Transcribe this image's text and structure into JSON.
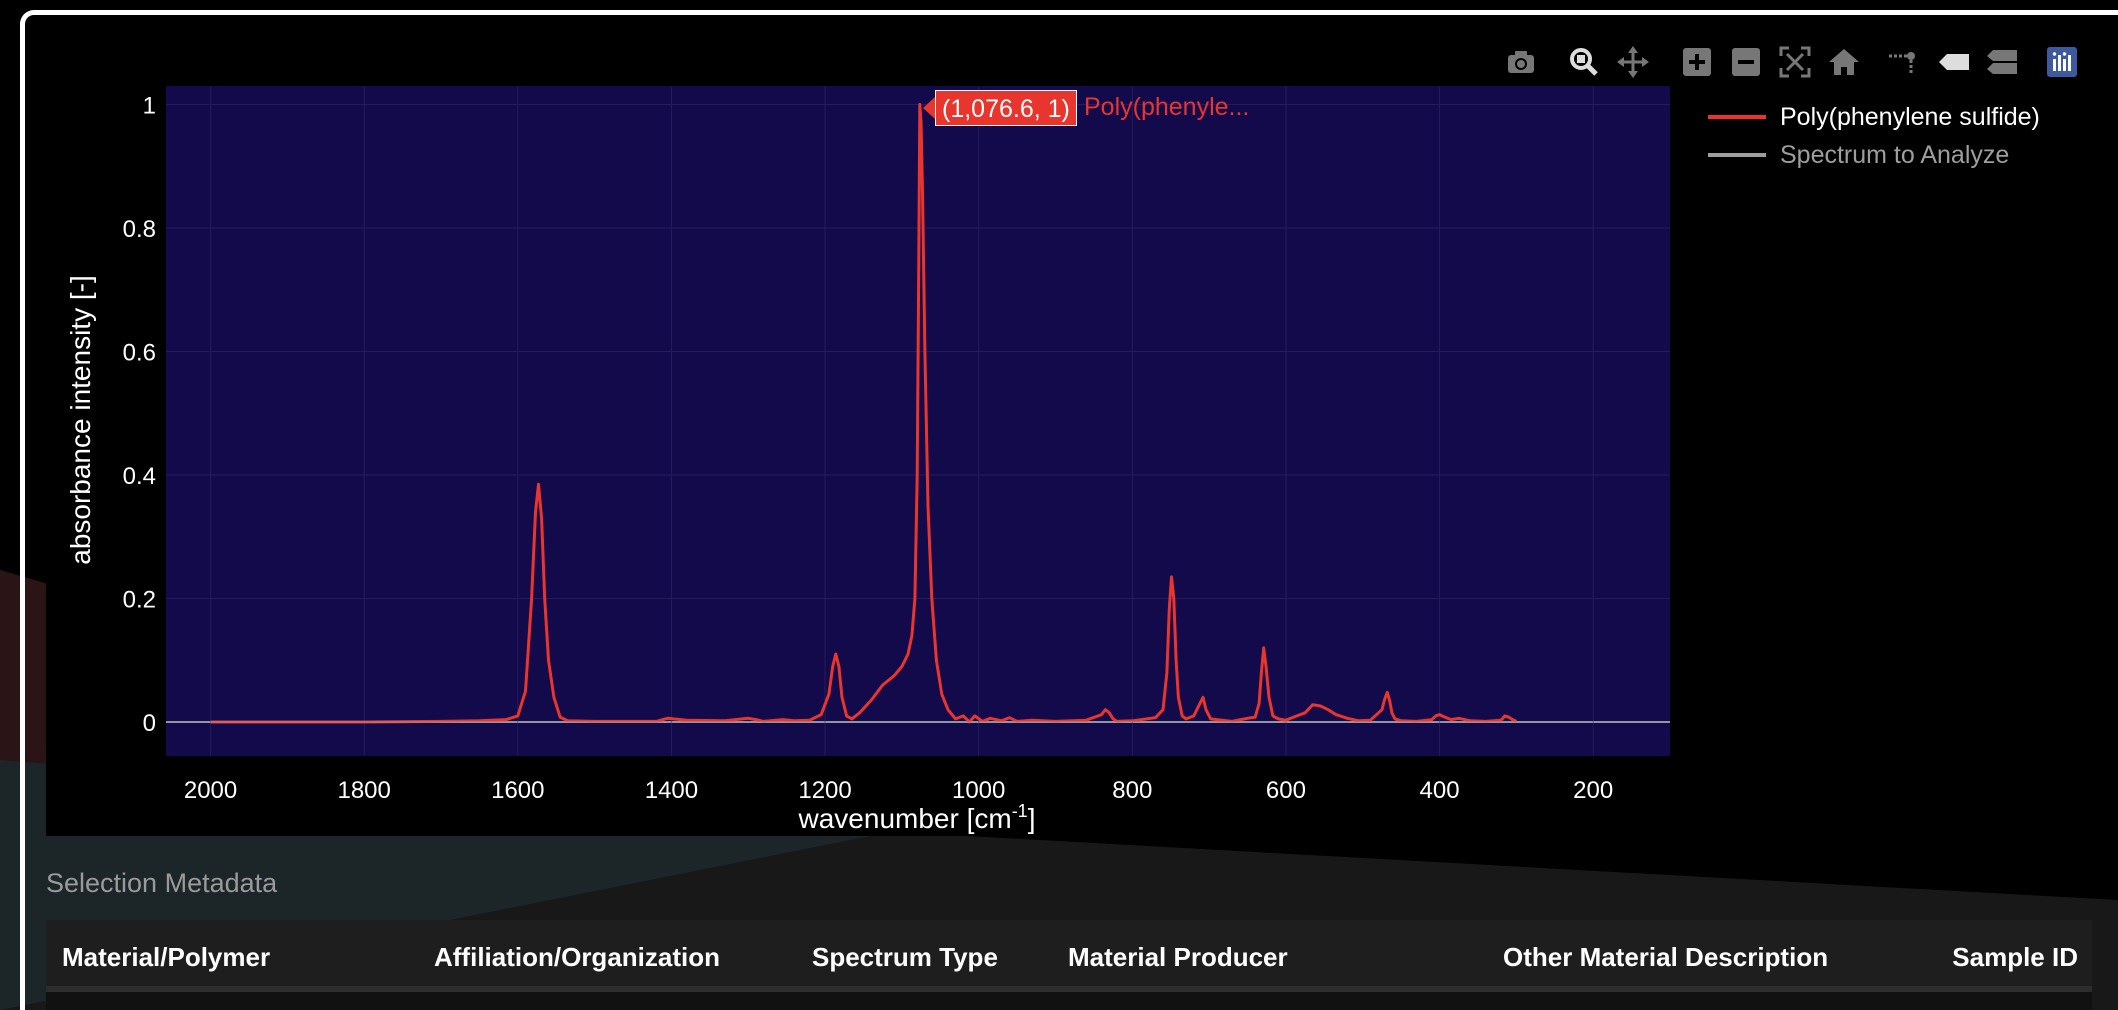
{
  "colors": {
    "plot_bg": "#120a4a",
    "trace_main": "#e8352e",
    "trace_other": "#9e9e9e",
    "axis_text": "#ffffff"
  },
  "modebar": {
    "icons": [
      "camera-icon",
      "zoom-icon",
      "pan-icon",
      "zoom-in-icon",
      "zoom-out-icon",
      "autoscale-icon",
      "reset-axes-icon",
      "spike-lines-icon",
      "hover-closest-icon",
      "hover-compare-icon",
      "plotly-logo-icon"
    ]
  },
  "tooltip": {
    "text": "(1,076.6, 1)",
    "name": "Poly(phenyle..."
  },
  "legend": {
    "items": [
      {
        "label": "Poly(phenylene sulfide)",
        "color": "#e8352e"
      },
      {
        "label": "Spectrum to Analyze",
        "color": "#9e9e9e"
      }
    ]
  },
  "chart_data": {
    "type": "line",
    "title": "",
    "xlabel": "wavenumber [cm⁻¹]",
    "xlabel_base": "wavenumber [cm",
    "xlabel_sup": "-1",
    "xlabel_tail": "]",
    "ylabel": "absorbance intensity [-]",
    "xlim": [
      2058,
      100
    ],
    "ylim": [
      -0.055,
      1.03
    ],
    "x_reversed": true,
    "x_ticks": [
      2000,
      1800,
      1600,
      1400,
      1200,
      1000,
      800,
      600,
      400,
      200
    ],
    "y_ticks": [
      0,
      0.2,
      0.4,
      0.6,
      0.8,
      1
    ],
    "y_tick_labels": [
      "0",
      "0.2",
      "0.4",
      "0.6",
      "0.8",
      "1"
    ],
    "grid": true,
    "legend_position": "right",
    "series": [
      {
        "name": "Poly(phenylene sulfide)",
        "color": "#e8352e",
        "x": [
          2000,
          1800,
          1700,
          1650,
          1615,
          1600,
          1590,
          1582,
          1577,
          1573,
          1569,
          1565,
          1560,
          1553,
          1545,
          1535,
          1500,
          1420,
          1405,
          1380,
          1330,
          1300,
          1290,
          1280,
          1255,
          1240,
          1220,
          1205,
          1195,
          1190,
          1186,
          1182,
          1178,
          1172,
          1165,
          1155,
          1140,
          1125,
          1110,
          1100,
          1092,
          1087,
          1083,
          1080,
          1078,
          1076.6,
          1075,
          1073,
          1070,
          1066,
          1061,
          1055,
          1048,
          1040,
          1030,
          1020,
          1012,
          1005,
          995,
          985,
          970,
          960,
          950,
          930,
          900,
          860,
          840,
          835,
          830,
          825,
          820,
          800,
          770,
          760,
          755,
          752,
          749,
          746,
          743,
          740,
          735,
          730,
          720,
          712,
          708,
          704,
          698,
          690,
          670,
          650,
          640,
          635,
          632,
          629,
          626,
          622,
          617,
          610,
          600,
          590,
          575,
          565,
          555,
          545,
          535,
          520,
          505,
          490,
          475,
          472,
          468,
          465,
          462,
          458,
          450,
          430,
          410,
          405,
          400,
          395,
          385,
          375,
          360,
          340,
          320,
          315,
          310,
          305,
          300
        ],
        "values": [
          0,
          0,
          0.001,
          0.002,
          0.004,
          0.01,
          0.05,
          0.2,
          0.34,
          0.385,
          0.33,
          0.2,
          0.1,
          0.04,
          0.008,
          0.002,
          0.001,
          0.001,
          0.006,
          0.003,
          0.002,
          0.006,
          0.004,
          0.001,
          0.004,
          0.002,
          0.003,
          0.012,
          0.045,
          0.09,
          0.11,
          0.09,
          0.04,
          0.01,
          0.005,
          0.015,
          0.035,
          0.06,
          0.075,
          0.09,
          0.11,
          0.14,
          0.2,
          0.4,
          0.75,
          1,
          0.97,
          0.85,
          0.6,
          0.35,
          0.2,
          0.1,
          0.045,
          0.02,
          0.005,
          0.01,
          0.0,
          0.01,
          0.001,
          0.006,
          0.002,
          0.007,
          0.001,
          0.003,
          0.001,
          0.003,
          0.012,
          0.02,
          0.015,
          0.005,
          0.001,
          0.002,
          0.007,
          0.02,
          0.08,
          0.18,
          0.235,
          0.2,
          0.1,
          0.04,
          0.01,
          0.005,
          0.01,
          0.03,
          0.04,
          0.02,
          0.005,
          0.004,
          0.001,
          0.006,
          0.008,
          0.03,
          0.08,
          0.12,
          0.09,
          0.04,
          0.01,
          0.005,
          0.003,
          0.008,
          0.015,
          0.028,
          0.026,
          0.02,
          0.012,
          0.006,
          0.002,
          0.003,
          0.02,
          0.035,
          0.048,
          0.035,
          0.015,
          0.005,
          0.002,
          0.001,
          0.004,
          0.01,
          0.012,
          0.009,
          0.004,
          0.006,
          0.002,
          0.001,
          0.003,
          0.01,
          0.008,
          0.004,
          0.001
        ]
      },
      {
        "name": "Spectrum to Analyze",
        "color": "#9e9e9e",
        "x": [
          2058,
          100
        ],
        "values": [
          0,
          0
        ]
      }
    ]
  },
  "metadata": {
    "section_title": "Selection Metadata",
    "columns": [
      "Material/Polymer",
      "Affiliation/Organization",
      "Spectrum Type",
      "Material Producer",
      "Other Material Description",
      "Sample ID"
    ]
  }
}
